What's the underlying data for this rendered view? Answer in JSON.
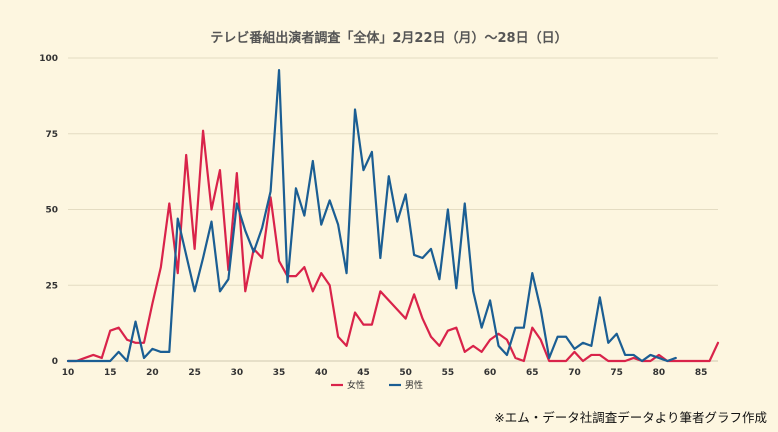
{
  "chart_data": {
    "type": "line",
    "title": "テレビ番組出演者調査「全体」2月22日（月）〜28日（日）",
    "xlabel": "",
    "ylabel": "",
    "xlim": [
      10,
      87
    ],
    "ylim": [
      0,
      100
    ],
    "x_ticks": [
      10,
      15,
      20,
      25,
      30,
      35,
      40,
      45,
      50,
      55,
      60,
      65,
      70,
      75,
      80,
      85
    ],
    "y_ticks": [
      0,
      25,
      50,
      75,
      100
    ],
    "grid": "horizontal",
    "legend_position": "bottom",
    "series": [
      {
        "name": "女性",
        "color": "#d9234a",
        "x_start": 10,
        "values": [
          0,
          0,
          1,
          2,
          1,
          10,
          11,
          7,
          6,
          6,
          19,
          31,
          52,
          29,
          68,
          37,
          76,
          50,
          63,
          30,
          62,
          23,
          37,
          34,
          54,
          33,
          28,
          28,
          31,
          23,
          29,
          25,
          8,
          5,
          16,
          12,
          12,
          23,
          20,
          17,
          14,
          22,
          14,
          8,
          5,
          10,
          11,
          3,
          5,
          3,
          7,
          9,
          7,
          1,
          0,
          11,
          7,
          0,
          0,
          0,
          3,
          0,
          2,
          2,
          0,
          0,
          0,
          1,
          0,
          0,
          2,
          0,
          0,
          0,
          0,
          0,
          0,
          6
        ]
      },
      {
        "name": "男性",
        "color": "#1b5e93",
        "x_start": 10,
        "values": [
          0,
          0,
          0,
          0,
          0,
          0,
          3,
          0,
          13,
          1,
          4,
          3,
          3,
          47,
          35,
          23,
          34,
          46,
          23,
          27,
          52,
          43,
          36,
          44,
          56,
          96,
          26,
          57,
          48,
          66,
          45,
          53,
          45,
          29,
          83,
          63,
          69,
          34,
          61,
          46,
          55,
          35,
          34,
          37,
          27,
          50,
          24,
          52,
          23,
          11,
          20,
          5,
          2,
          11,
          11,
          29,
          17,
          1,
          8,
          8,
          4,
          6,
          5,
          21,
          6,
          9,
          2,
          2,
          0,
          2,
          1,
          0,
          1
        ]
      }
    ]
  },
  "source_note": "※エム・データ社調査データより筆者グラフ作成"
}
